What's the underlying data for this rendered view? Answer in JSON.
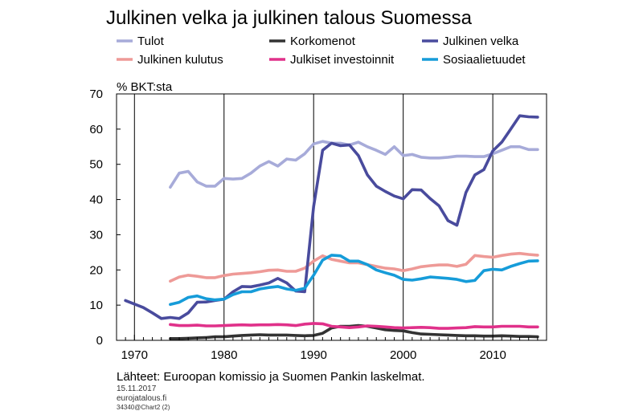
{
  "chart_data": {
    "type": "line",
    "title": "Julkinen velka ja julkinen talous Suomessa",
    "ylabel": "% BKT:sta",
    "xlim": [
      1968,
      2016
    ],
    "ylim": [
      0,
      70
    ],
    "yticks": [
      0,
      10,
      20,
      30,
      40,
      50,
      60,
      70
    ],
    "xticks": [
      1970,
      1980,
      1990,
      2000,
      2010
    ],
    "grid": "vertical",
    "legend_position": "top",
    "series": [
      {
        "name": "Tulot",
        "color": "#a7abd9",
        "x": [
          1974,
          1975,
          1976,
          1977,
          1978,
          1979,
          1980,
          1981,
          1982,
          1983,
          1984,
          1985,
          1986,
          1987,
          1988,
          1989,
          1990,
          1991,
          1992,
          1993,
          1994,
          1995,
          1996,
          1997,
          1998,
          1999,
          2000,
          2001,
          2002,
          2003,
          2004,
          2005,
          2006,
          2007,
          2008,
          2009,
          2010,
          2011,
          2012,
          2013,
          2014,
          2015
        ],
        "y": [
          43.5,
          47.5,
          48,
          45,
          43.8,
          43.8,
          46,
          45.8,
          46,
          47.5,
          49.5,
          50.8,
          49.5,
          51.5,
          51.2,
          53,
          55.8,
          56.5,
          56,
          56,
          55.5,
          56.3,
          55,
          54,
          52.8,
          55,
          52.5,
          52.8,
          52,
          51.8,
          51.8,
          52,
          52.3,
          52.3,
          52.2,
          52.2,
          53,
          54,
          55,
          55,
          54.2,
          54.2
        ]
      },
      {
        "name": "Julkinen kulutus",
        "color": "#ee9a97",
        "x": [
          1974,
          1975,
          1976,
          1977,
          1978,
          1979,
          1980,
          1981,
          1982,
          1983,
          1984,
          1985,
          1986,
          1987,
          1988,
          1989,
          1990,
          1991,
          1992,
          1993,
          1994,
          1995,
          1996,
          1997,
          1998,
          1999,
          2000,
          2001,
          2002,
          2003,
          2004,
          2005,
          2006,
          2007,
          2008,
          2009,
          2010,
          2011,
          2012,
          2013,
          2014,
          2015
        ],
        "y": [
          16.8,
          18,
          18.5,
          18.2,
          17.8,
          17.8,
          18.4,
          18.8,
          19,
          19.2,
          19.5,
          19.9,
          20,
          19.6,
          19.6,
          20.5,
          22.5,
          24,
          23,
          22.5,
          22,
          22,
          21.5,
          21,
          20.5,
          20.3,
          19.8,
          20.3,
          20.9,
          21.2,
          21.4,
          21.4,
          21,
          21.6,
          24.1,
          23.8,
          23.6,
          24.1,
          24.5,
          24.7,
          24.4,
          24.2
        ]
      },
      {
        "name": "Korkomenot",
        "color": "#333333",
        "x": [
          1974,
          1975,
          1976,
          1977,
          1978,
          1979,
          1980,
          1981,
          1982,
          1983,
          1984,
          1985,
          1986,
          1987,
          1988,
          1989,
          1990,
          1991,
          1992,
          1993,
          1994,
          1995,
          1996,
          1997,
          1998,
          1999,
          2000,
          2001,
          2002,
          2003,
          2004,
          2005,
          2006,
          2007,
          2008,
          2009,
          2010,
          2011,
          2012,
          2013,
          2014,
          2015
        ],
        "y": [
          0.5,
          0.5,
          0.6,
          0.7,
          0.8,
          1,
          1,
          1.2,
          1.4,
          1.5,
          1.6,
          1.5,
          1.5,
          1.5,
          1.4,
          1.3,
          1.4,
          2,
          3.5,
          4,
          4,
          4.2,
          4,
          3.5,
          3,
          2.8,
          2.7,
          2.2,
          1.8,
          1.7,
          1.6,
          1.5,
          1.4,
          1.3,
          1.3,
          1.2,
          1.2,
          1.3,
          1.2,
          1.1,
          1.1,
          1
        ]
      },
      {
        "name": "Julkiset investoinnit",
        "color": "#e0318a",
        "x": [
          1974,
          1975,
          1976,
          1977,
          1978,
          1979,
          1980,
          1981,
          1982,
          1983,
          1984,
          1985,
          1986,
          1987,
          1988,
          1989,
          1990,
          1991,
          1992,
          1993,
          1994,
          1995,
          1996,
          1997,
          1998,
          1999,
          2000,
          2001,
          2002,
          2003,
          2004,
          2005,
          2006,
          2007,
          2008,
          2009,
          2010,
          2011,
          2012,
          2013,
          2014,
          2015
        ],
        "y": [
          4.5,
          4.2,
          4.2,
          4.3,
          4.1,
          4.1,
          4.2,
          4.3,
          4.4,
          4.3,
          4.4,
          4.4,
          4.5,
          4.4,
          4.2,
          4.6,
          4.8,
          4.7,
          4,
          3.8,
          3.6,
          3.8,
          4.1,
          4,
          3.8,
          3.6,
          3.5,
          3.6,
          3.7,
          3.6,
          3.4,
          3.4,
          3.5,
          3.6,
          3.9,
          3.8,
          3.8,
          4,
          4,
          4,
          3.8,
          3.8
        ]
      },
      {
        "name": "Julkinen velka",
        "color": "#494b9d",
        "x": [
          1969,
          1970,
          1971,
          1972,
          1973,
          1974,
          1975,
          1976,
          1977,
          1978,
          1979,
          1980,
          1981,
          1982,
          1983,
          1984,
          1985,
          1986,
          1987,
          1988,
          1989,
          1990,
          1991,
          1992,
          1993,
          1994,
          1995,
          1996,
          1997,
          1998,
          1999,
          2000,
          2001,
          2002,
          2003,
          2004,
          2005,
          2006,
          2007,
          2008,
          2009,
          2010,
          2011,
          2012,
          2013,
          2014,
          2015
        ],
        "y": [
          11.3,
          10.3,
          9.3,
          7.8,
          6.2,
          6.5,
          6.2,
          7.8,
          10.8,
          10.9,
          11.3,
          11.7,
          13.8,
          15.3,
          15.2,
          15.7,
          16.3,
          17.6,
          16.3,
          14,
          13.8,
          38,
          54,
          56,
          55.3,
          55.5,
          52.5,
          47,
          43.8,
          42.3,
          41,
          40.2,
          42.8,
          42.7,
          40.3,
          38.2,
          34,
          32.7,
          42,
          47,
          48.5,
          53.8,
          56.3,
          60,
          63.8,
          63.5,
          63.4
        ]
      },
      {
        "name": "Sosiaalietuudet",
        "color": "#169cd9",
        "x": [
          1974,
          1975,
          1976,
          1977,
          1978,
          1979,
          1980,
          1981,
          1982,
          1983,
          1984,
          1985,
          1986,
          1987,
          1988,
          1989,
          1990,
          1991,
          1992,
          1993,
          1994,
          1995,
          1996,
          1997,
          1998,
          1999,
          2000,
          2001,
          2002,
          2003,
          2004,
          2005,
          2006,
          2007,
          2008,
          2009,
          2010,
          2011,
          2012,
          2013,
          2014,
          2015
        ],
        "y": [
          10.2,
          10.8,
          12.2,
          12.6,
          11.8,
          11.5,
          11.7,
          13,
          13.8,
          13.8,
          14.6,
          15,
          15.3,
          14.6,
          14.2,
          14.8,
          18.5,
          22.8,
          24.2,
          24,
          22.5,
          22.5,
          21.5,
          20,
          19.2,
          18.5,
          17.3,
          17.1,
          17.5,
          18,
          17.8,
          17.6,
          17.3,
          16.7,
          17,
          19.8,
          20.2,
          20,
          21,
          21.8,
          22.5,
          22.6
        ]
      }
    ]
  },
  "footer": {
    "source": "Lähteet: Euroopan komissio ja Suomen Pankin laskelmat.",
    "date": "15.11.2017",
    "site": "eurojatalous.fi",
    "code": "34340@Chart2 (2)"
  }
}
